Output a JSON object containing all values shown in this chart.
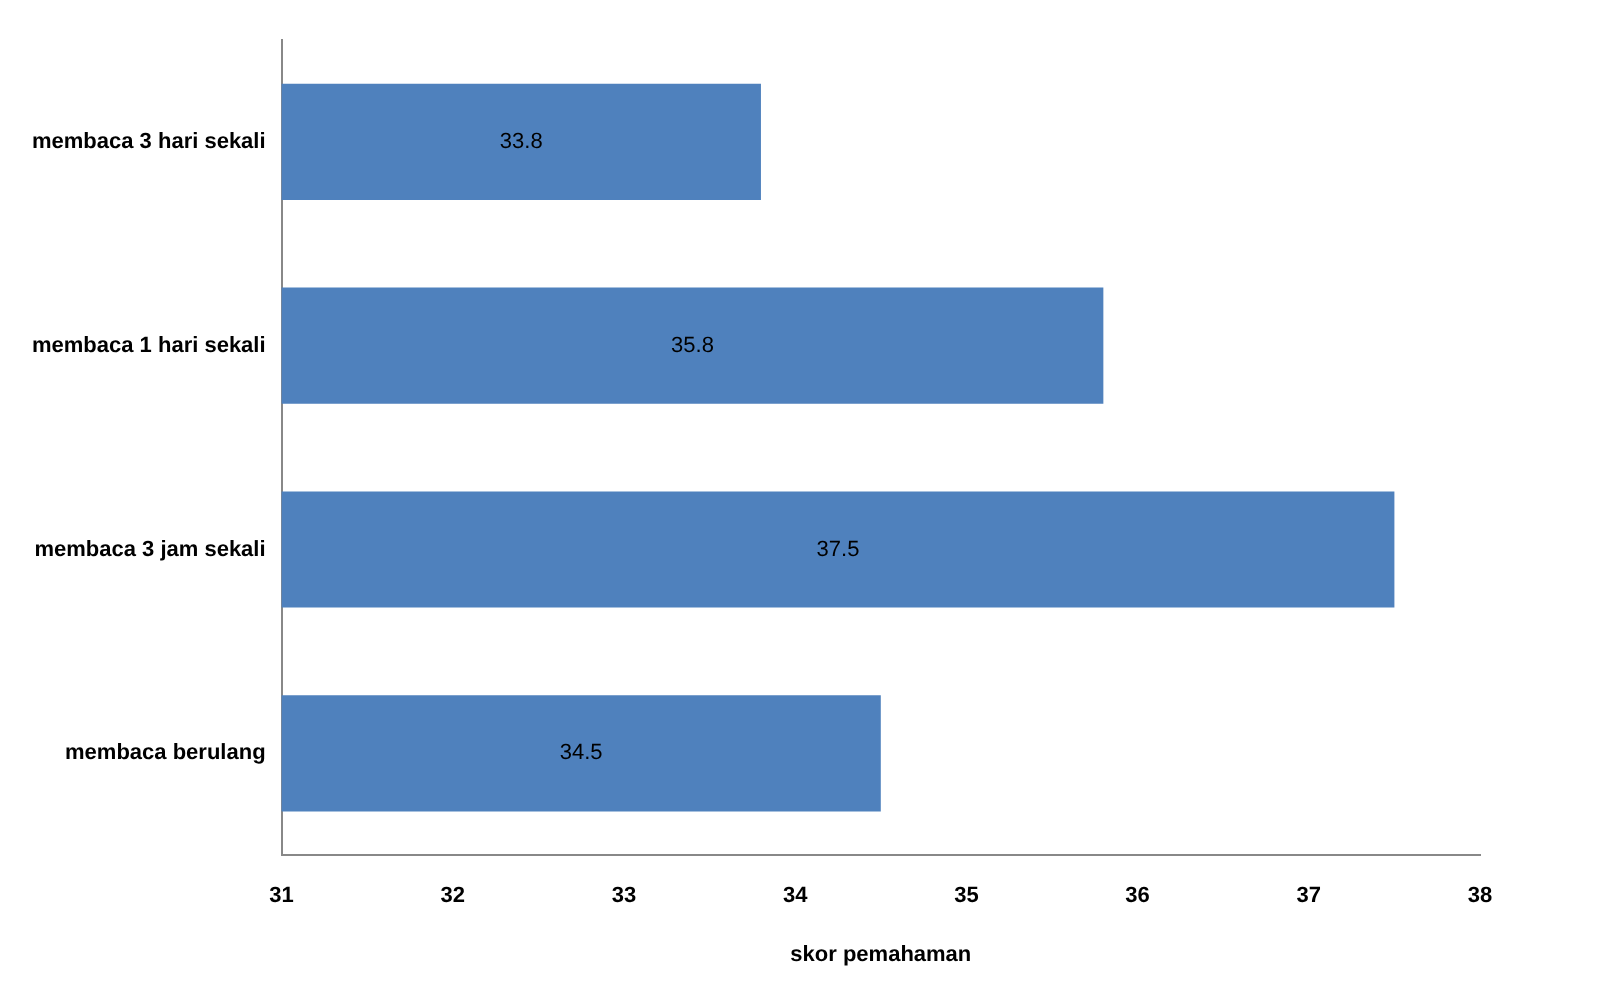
{
  "chart_data": {
    "type": "bar",
    "orientation": "horizontal",
    "xlabel": "skor pemahaman",
    "categories": [
      "membaca 3 hari sekali",
      "membaca 1 hari sekali",
      "membaca 3 jam sekali",
      "membaca berulang"
    ],
    "values": [
      33.8,
      35.8,
      37.5,
      34.5
    ],
    "color": "#4f81bd",
    "xlim": [
      31,
      38
    ],
    "xticks": [
      31,
      32,
      33,
      34,
      35,
      36,
      37,
      38
    ],
    "grid": false,
    "legend": false,
    "data_labels": true
  }
}
